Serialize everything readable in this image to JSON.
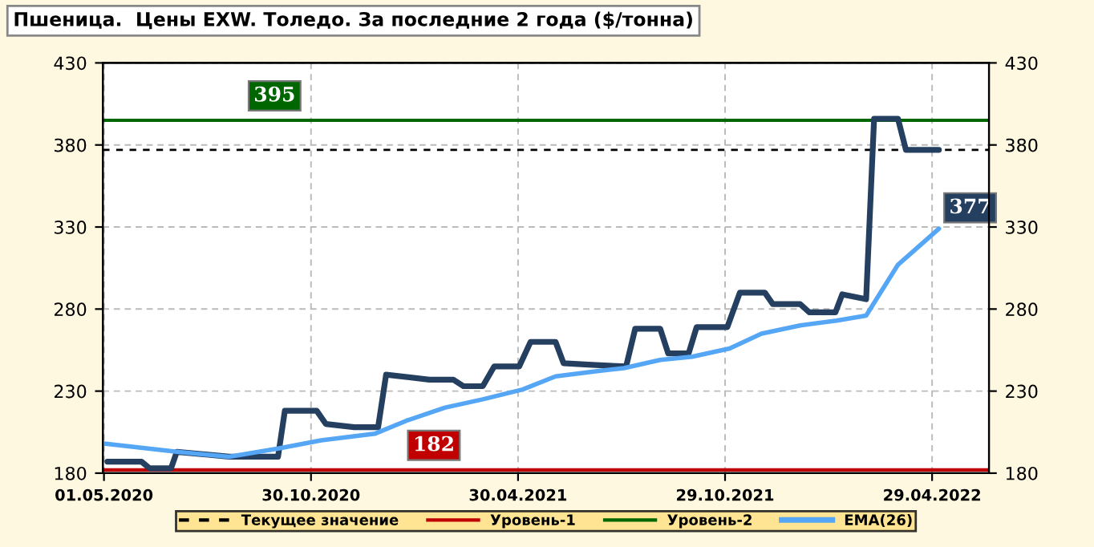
{
  "chart_data": {
    "type": "line",
    "title": "Пшеница.  Цены EXW. Толедо. За последние 2 года ($/тонна)",
    "series": [
      {
        "color": "#243f60",
        "x": [
          "2020-05-04",
          "2020-06-03",
          "2020-06-10",
          "2020-06-29",
          "2020-07-04",
          "2020-08-19",
          "2020-10-01",
          "2020-10-07",
          "2020-11-04",
          "2020-11-12",
          "2020-12-07",
          "2020-12-28",
          "2021-01-04",
          "2021-02-11",
          "2021-03-04",
          "2021-03-13",
          "2021-03-30",
          "2021-04-09",
          "2021-05-01",
          "2021-05-11",
          "2021-06-02",
          "2021-06-09",
          "2021-07-04",
          "2021-08-03",
          "2021-08-11",
          "2021-09-02",
          "2021-09-09",
          "2021-09-27",
          "2021-10-04",
          "2021-10-31",
          "2021-11-11",
          "2021-12-03",
          "2021-12-10",
          "2022-01-03",
          "2022-01-11",
          "2022-02-03",
          "2022-02-09",
          "2022-03-02",
          "2022-03-09",
          "2022-03-30",
          "2022-04-06",
          "2022-05-05"
        ],
        "values": [
          187,
          187,
          183,
          183,
          193,
          190,
          190,
          218,
          218,
          210,
          208,
          208,
          240,
          237,
          237,
          233,
          233,
          245,
          245,
          260,
          260,
          247,
          246,
          245,
          268,
          268,
          253,
          253,
          269,
          269,
          290,
          290,
          283,
          283,
          278,
          278,
          289,
          286,
          396,
          396,
          377,
          377
        ]
      },
      {
        "name": "EMA(26)",
        "color": "#55a6f5",
        "x": [
          "2020-05-01",
          "2020-07-04",
          "2020-08-19",
          "2020-10-01",
          "2020-11-08",
          "2020-12-25",
          "2021-01-22",
          "2021-02-25",
          "2021-03-30",
          "2021-05-04",
          "2021-06-02",
          "2021-07-07",
          "2021-08-01",
          "2021-09-02",
          "2021-09-30",
          "2021-11-02",
          "2021-11-30",
          "2022-01-03",
          "2022-02-04",
          "2022-03-02",
          "2022-03-30",
          "2022-05-05"
        ],
        "values": [
          198,
          193,
          190,
          195,
          200,
          204,
          212,
          220,
          225,
          231,
          239,
          242,
          244,
          249,
          251,
          256,
          265,
          270,
          273,
          276,
          307,
          329
        ]
      }
    ],
    "xlim": [
      "2020-04-30",
      "2022-06-18"
    ],
    "xticks": [
      {
        "value": "2020-05-01",
        "label": "01.05.2020"
      },
      {
        "value": "2020-10-30",
        "label": "30.10.2020"
      },
      {
        "value": "2021-04-30",
        "label": "30.04.2021"
      },
      {
        "value": "2021-10-29",
        "label": "29.10.2021"
      },
      {
        "value": "2022-04-29",
        "label": "29.04.2022"
      }
    ],
    "ylim": [
      180,
      430
    ],
    "yticks": [
      180,
      230,
      280,
      330,
      380,
      430
    ],
    "y2lim": [
      180,
      430
    ],
    "y2ticks": [
      180,
      230,
      280,
      330,
      380,
      430
    ],
    "ref_lines": [
      {
        "axis": "y",
        "value": 377,
        "label": "Текущее значение",
        "color": "#000000",
        "line_style": "dashed"
      },
      {
        "axis": "y",
        "value": 182,
        "label": "Уровень-1",
        "color": "#c00000",
        "line_style": "solid"
      },
      {
        "axis": "y",
        "value": 395,
        "label": "Уровень-2",
        "color": "#006600",
        "line_style": "solid"
      }
    ],
    "annotations": [
      {
        "text": "395",
        "x": "2020-09-28",
        "y": 395
      },
      {
        "text": "182",
        "x": "2021-02-15",
        "y": 182
      },
      {
        "text": "377",
        "x": "2022-05-05",
        "y": 377
      }
    ],
    "grid": true,
    "legend": "bottom",
    "line_style": "solid"
  }
}
